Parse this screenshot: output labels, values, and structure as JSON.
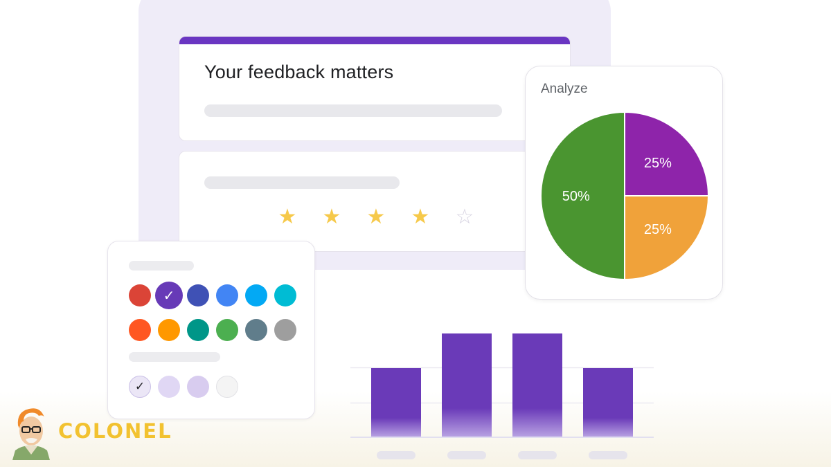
{
  "feedback_card": {
    "title": "Your feedback matters"
  },
  "rating": {
    "value": 4,
    "max": 5,
    "filled_color": "#f6c94a",
    "empty_color": "#d8d4e2"
  },
  "palette": {
    "selected_index": 1,
    "row1": [
      "#db4437",
      "#673ab7",
      "#3f51b5",
      "#4285f4",
      "#03a9f4",
      "#00bcd4"
    ],
    "row2": [
      "#ff5722",
      "#ff9800",
      "#009688",
      "#4caf50",
      "#607d8b",
      "#9e9e9e"
    ],
    "tints": [
      "#ebe6f6",
      "#e0d7f4",
      "#d8ccef",
      "#f4f4f4"
    ],
    "tint_selected_index": 0
  },
  "analyze": {
    "label": "Analyze",
    "chart_data": {
      "type": "pie",
      "slices": [
        {
          "label": "25%",
          "value": 25,
          "color": "#8e24aa"
        },
        {
          "label": "25%",
          "value": 25,
          "color": "#f0a23a"
        },
        {
          "label": "50%",
          "value": 50,
          "color": "#4a9530"
        }
      ]
    }
  },
  "bar_chart": {
    "chart_data": {
      "type": "bar",
      "values": [
        4,
        6,
        6,
        4
      ],
      "ylim": [
        0,
        6
      ],
      "color": "#6a3ab8",
      "grid": true
    }
  },
  "brand": {
    "name": "COLONEL",
    "color": "#f2c230"
  },
  "icons": {
    "selected_swatch": "check-icon",
    "rating": "star-icon"
  }
}
